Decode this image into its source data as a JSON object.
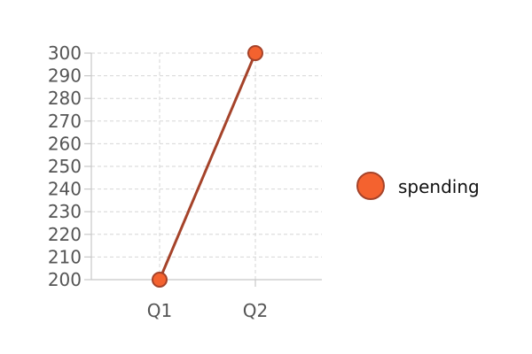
{
  "chart_data": {
    "type": "line",
    "categories": [
      "Q1",
      "Q2"
    ],
    "series": [
      {
        "name": "spending",
        "values": [
          200,
          300
        ]
      }
    ],
    "title": "",
    "xlabel": "",
    "ylabel": "",
    "ylim": [
      200,
      300
    ],
    "yticks": [
      200,
      210,
      220,
      230,
      240,
      250,
      260,
      270,
      280,
      290,
      300
    ],
    "grid": true,
    "legend_position": "right",
    "colors": {
      "line": "#a5432a",
      "marker_fill": "#f4622f",
      "marker_stroke": "#a5432a",
      "grid": "#d6d6d6",
      "axis": "#c8c8c8",
      "tick_text": "#555555",
      "legend_text": "#111111"
    }
  }
}
